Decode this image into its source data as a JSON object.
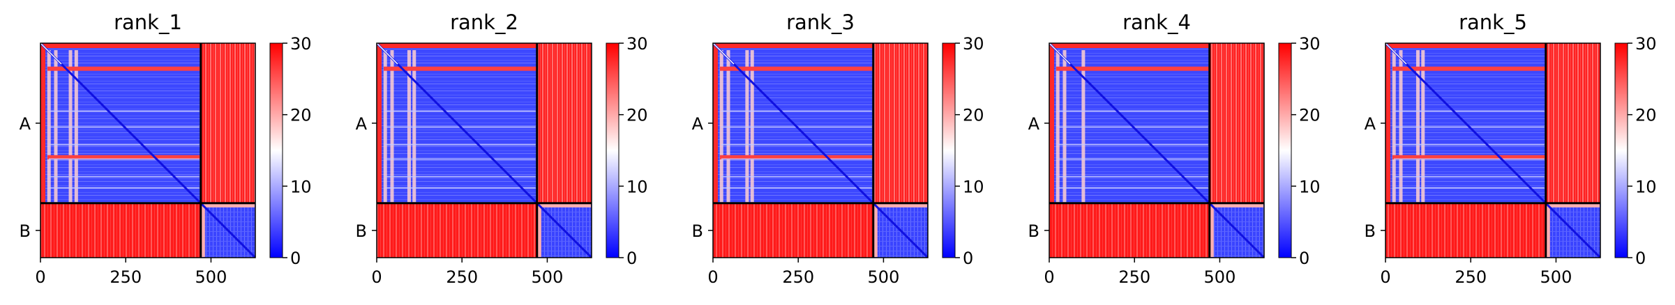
{
  "chart_data": [
    {
      "type": "heatmap",
      "title": "rank_1",
      "chains": [
        "A",
        "B"
      ],
      "chain_boundary": 470,
      "xlim": [
        0,
        630
      ],
      "x_ticks": [
        0,
        250,
        500
      ],
      "colorbar": {
        "range": [
          0,
          30
        ],
        "ticks": [
          0,
          10,
          20,
          30
        ]
      },
      "stripes": [
        25,
        45,
        88,
        105
      ],
      "bright_rows": [
        75,
        335
      ]
    },
    {
      "type": "heatmap",
      "title": "rank_2",
      "chains": [
        "A",
        "B"
      ],
      "chain_boundary": 470,
      "xlim": [
        0,
        630
      ],
      "x_ticks": [
        0,
        250,
        500
      ],
      "colorbar": {
        "range": [
          0,
          30
        ],
        "ticks": [
          0,
          10,
          20,
          30
        ]
      },
      "stripes": [
        25,
        45,
        95,
        110
      ],
      "bright_rows": [
        75
      ]
    },
    {
      "type": "heatmap",
      "title": "rank_3",
      "chains": [
        "A",
        "B"
      ],
      "chain_boundary": 470,
      "xlim": [
        0,
        630
      ],
      "x_ticks": [
        0,
        250,
        500
      ],
      "colorbar": {
        "range": [
          0,
          30
        ],
        "ticks": [
          0,
          10,
          20,
          30
        ]
      },
      "stripes": [
        25,
        45,
        100,
        115
      ],
      "bright_rows": [
        75,
        335
      ]
    },
    {
      "type": "heatmap",
      "title": "rank_4",
      "chains": [
        "A",
        "B"
      ],
      "chain_boundary": 470,
      "xlim": [
        0,
        630
      ],
      "x_ticks": [
        0,
        250,
        500
      ],
      "colorbar": {
        "range": [
          0,
          30
        ],
        "ticks": [
          0,
          10,
          20,
          30
        ]
      },
      "stripes": [
        25,
        45,
        100
      ],
      "bright_rows": [
        75
      ]
    },
    {
      "type": "heatmap",
      "title": "rank_5",
      "chains": [
        "A",
        "B"
      ],
      "chain_boundary": 470,
      "xlim": [
        0,
        630
      ],
      "x_ticks": [
        0,
        250,
        500
      ],
      "colorbar": {
        "range": [
          0,
          30
        ],
        "ticks": [
          0,
          10,
          20,
          30
        ]
      },
      "stripes": [
        25,
        45,
        95,
        110
      ],
      "bright_rows": [
        75,
        335
      ]
    }
  ]
}
